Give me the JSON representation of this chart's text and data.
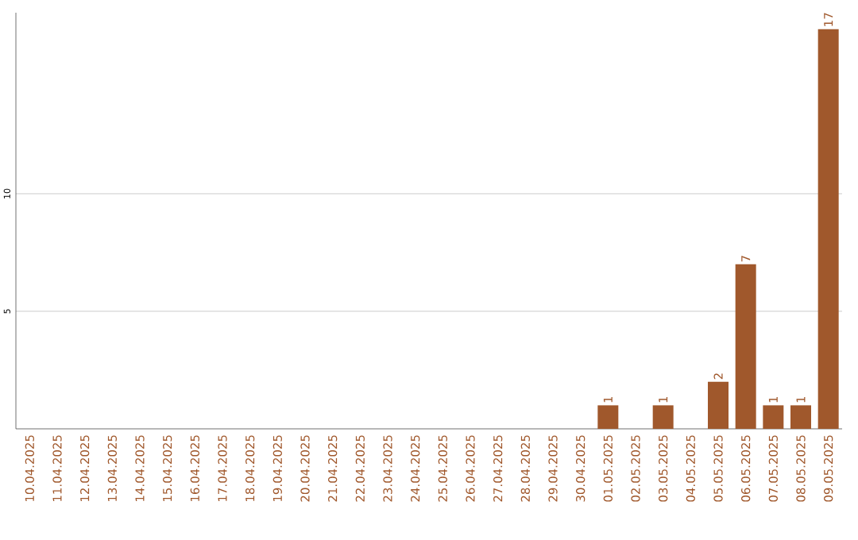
{
  "chart_data": {
    "type": "bar",
    "categories": [
      "10.04.2025",
      "11.04.2025",
      "12.04.2025",
      "13.04.2025",
      "14.04.2025",
      "15.04.2025",
      "16.04.2025",
      "17.04.2025",
      "18.04.2025",
      "19.04.2025",
      "20.04.2025",
      "21.04.2025",
      "22.04.2025",
      "23.04.2025",
      "24.04.2025",
      "25.04.2025",
      "26.04.2025",
      "27.04.2025",
      "28.04.2025",
      "29.04.2025",
      "30.04.2025",
      "01.05.2025",
      "02.05.2025",
      "03.05.2025",
      "04.05.2025",
      "05.05.2025",
      "06.05.2025",
      "07.05.2025",
      "08.05.2025",
      "09.05.2025"
    ],
    "values": [
      0,
      0,
      0,
      0,
      0,
      0,
      0,
      0,
      0,
      0,
      0,
      0,
      0,
      0,
      0,
      0,
      0,
      0,
      0,
      0,
      0,
      1,
      0,
      1,
      0,
      2,
      7,
      1,
      1,
      17
    ],
    "value_labels": [
      null,
      null,
      null,
      null,
      null,
      null,
      null,
      null,
      null,
      null,
      null,
      null,
      null,
      null,
      null,
      null,
      null,
      null,
      null,
      null,
      null,
      "1",
      null,
      "1",
      null,
      "2",
      "7",
      "1",
      "1",
      "17"
    ],
    "color": "#a0582c",
    "ylim": [
      0,
      17.7
    ],
    "yticks": [
      5,
      10
    ],
    "grid": "y"
  }
}
